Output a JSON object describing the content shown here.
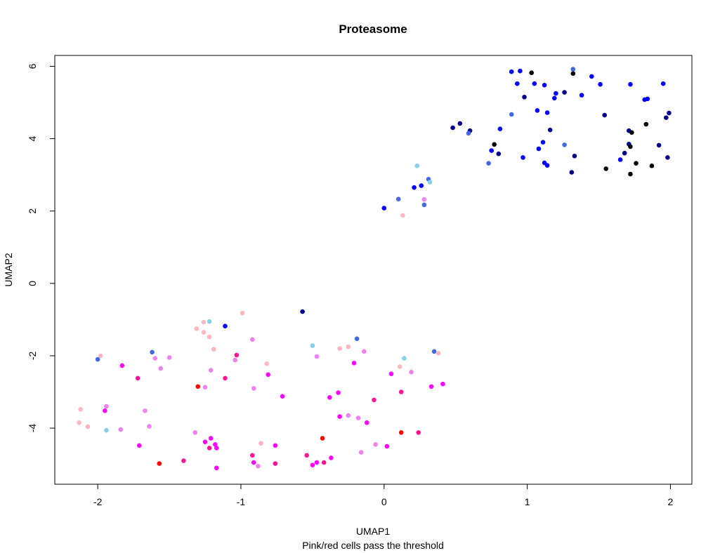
{
  "chart_data": {
    "type": "scatter",
    "title": "Proteasome",
    "xlabel": "UMAP1",
    "ylabel": "UMAP2",
    "subtitle": "Pink/red cells pass the threshold",
    "xlim": [
      -2.3,
      2.15
    ],
    "ylim": [
      -5.55,
      6.3
    ],
    "xticks": [
      -2,
      -1,
      0,
      1,
      2
    ],
    "yticks": [
      -4,
      -2,
      0,
      2,
      4,
      6
    ],
    "xtick_labels": [
      "-2",
      "-1",
      "0",
      "1",
      "2"
    ],
    "ytick_labels": [
      "-4",
      "-2",
      "0",
      "2",
      "4",
      "6"
    ],
    "grid": false,
    "legend": "none",
    "colors": {
      "black": "#000000",
      "navy": "#00008B",
      "blue": "#0000FF",
      "royalblue": "#4169E1",
      "skyblue": "#87CEEB",
      "red": "#FF0000",
      "deeppink": "#FF1493",
      "magenta": "#FF00FF",
      "violet": "#EE82EE",
      "pink": "#FFB6C1"
    },
    "points": [
      {
        "x": 0.89,
        "y": 5.85,
        "c": "blue"
      },
      {
        "x": 0.95,
        "y": 5.87,
        "c": "blue"
      },
      {
        "x": 1.03,
        "y": 5.82,
        "c": "black"
      },
      {
        "x": 1.32,
        "y": 5.92,
        "c": "royalblue"
      },
      {
        "x": 1.32,
        "y": 5.8,
        "c": "black"
      },
      {
        "x": 0.93,
        "y": 5.52,
        "c": "blue"
      },
      {
        "x": 1.05,
        "y": 5.52,
        "c": "blue"
      },
      {
        "x": 1.12,
        "y": 5.48,
        "c": "blue"
      },
      {
        "x": 1.45,
        "y": 5.72,
        "c": "blue"
      },
      {
        "x": 1.51,
        "y": 5.5,
        "c": "blue"
      },
      {
        "x": 1.72,
        "y": 5.5,
        "c": "blue"
      },
      {
        "x": 1.95,
        "y": 5.52,
        "c": "blue"
      },
      {
        "x": 1.2,
        "y": 5.25,
        "c": "blue"
      },
      {
        "x": 1.26,
        "y": 5.28,
        "c": "navy"
      },
      {
        "x": 1.38,
        "y": 5.2,
        "c": "blue"
      },
      {
        "x": 1.19,
        "y": 5.12,
        "c": "blue"
      },
      {
        "x": 0.98,
        "y": 5.15,
        "c": "navy"
      },
      {
        "x": 1.84,
        "y": 5.1,
        "c": "blue"
      },
      {
        "x": 1.82,
        "y": 5.08,
        "c": "blue"
      },
      {
        "x": 1.07,
        "y": 4.78,
        "c": "blue"
      },
      {
        "x": 1.14,
        "y": 4.72,
        "c": "blue"
      },
      {
        "x": 0.89,
        "y": 4.67,
        "c": "royalblue"
      },
      {
        "x": 1.54,
        "y": 4.65,
        "c": "navy"
      },
      {
        "x": 1.99,
        "y": 4.71,
        "c": "navy"
      },
      {
        "x": 1.97,
        "y": 4.58,
        "c": "navy"
      },
      {
        "x": 0.53,
        "y": 4.42,
        "c": "navy"
      },
      {
        "x": 0.48,
        "y": 4.3,
        "c": "navy"
      },
      {
        "x": 1.83,
        "y": 4.4,
        "c": "black"
      },
      {
        "x": 0.81,
        "y": 4.27,
        "c": "blue"
      },
      {
        "x": 0.6,
        "y": 4.22,
        "c": "navy"
      },
      {
        "x": 0.59,
        "y": 4.15,
        "c": "royalblue"
      },
      {
        "x": 1.16,
        "y": 4.24,
        "c": "navy"
      },
      {
        "x": 1.71,
        "y": 4.22,
        "c": "navy"
      },
      {
        "x": 1.73,
        "y": 4.17,
        "c": "black"
      },
      {
        "x": 0.77,
        "y": 3.84,
        "c": "black"
      },
      {
        "x": 0.75,
        "y": 3.67,
        "c": "blue"
      },
      {
        "x": 0.8,
        "y": 3.58,
        "c": "navy"
      },
      {
        "x": 1.11,
        "y": 3.9,
        "c": "blue"
      },
      {
        "x": 1.08,
        "y": 3.72,
        "c": "blue"
      },
      {
        "x": 1.26,
        "y": 3.83,
        "c": "royalblue"
      },
      {
        "x": 1.71,
        "y": 3.85,
        "c": "navy"
      },
      {
        "x": 1.72,
        "y": 3.78,
        "c": "black"
      },
      {
        "x": 1.92,
        "y": 3.82,
        "c": "navy"
      },
      {
        "x": 1.68,
        "y": 3.6,
        "c": "navy"
      },
      {
        "x": 0.97,
        "y": 3.48,
        "c": "blue"
      },
      {
        "x": 1.33,
        "y": 3.52,
        "c": "navy"
      },
      {
        "x": 1.65,
        "y": 3.42,
        "c": "blue"
      },
      {
        "x": 1.98,
        "y": 3.48,
        "c": "navy"
      },
      {
        "x": 0.73,
        "y": 3.32,
        "c": "royalblue"
      },
      {
        "x": 1.12,
        "y": 3.33,
        "c": "blue"
      },
      {
        "x": 1.14,
        "y": 3.26,
        "c": "blue"
      },
      {
        "x": 1.76,
        "y": 3.32,
        "c": "black"
      },
      {
        "x": 1.87,
        "y": 3.25,
        "c": "black"
      },
      {
        "x": 1.55,
        "y": 3.17,
        "c": "black"
      },
      {
        "x": 1.31,
        "y": 3.07,
        "c": "navy"
      },
      {
        "x": 1.72,
        "y": 3.02,
        "c": "black"
      },
      {
        "x": 0.23,
        "y": 3.25,
        "c": "skyblue"
      },
      {
        "x": 0.31,
        "y": 2.88,
        "c": "royalblue"
      },
      {
        "x": 0.32,
        "y": 2.8,
        "c": "skyblue"
      },
      {
        "x": 0.26,
        "y": 2.7,
        "c": "blue"
      },
      {
        "x": 0.21,
        "y": 2.65,
        "c": "blue"
      },
      {
        "x": 0.1,
        "y": 2.33,
        "c": "royalblue"
      },
      {
        "x": 0.28,
        "y": 2.32,
        "c": "violet"
      },
      {
        "x": 0.28,
        "y": 2.17,
        "c": "royalblue"
      },
      {
        "x": 0.0,
        "y": 2.08,
        "c": "blue"
      },
      {
        "x": 0.13,
        "y": 1.88,
        "c": "pink"
      },
      {
        "x": -0.57,
        "y": -0.78,
        "c": "navy"
      },
      {
        "x": -0.99,
        "y": -0.82,
        "c": "pink"
      },
      {
        "x": -1.22,
        "y": -1.05,
        "c": "skyblue"
      },
      {
        "x": -1.26,
        "y": -1.07,
        "c": "pink"
      },
      {
        "x": -1.31,
        "y": -1.25,
        "c": "pink"
      },
      {
        "x": -1.26,
        "y": -1.35,
        "c": "pink"
      },
      {
        "x": -1.11,
        "y": -1.18,
        "c": "blue"
      },
      {
        "x": -1.22,
        "y": -1.48,
        "c": "pink"
      },
      {
        "x": -0.92,
        "y": -1.55,
        "c": "violet"
      },
      {
        "x": -0.5,
        "y": -1.72,
        "c": "skyblue"
      },
      {
        "x": -0.31,
        "y": -1.8,
        "c": "pink"
      },
      {
        "x": -0.25,
        "y": -1.75,
        "c": "pink"
      },
      {
        "x": -0.19,
        "y": -1.53,
        "c": "royalblue"
      },
      {
        "x": -0.14,
        "y": -1.88,
        "c": "violet"
      },
      {
        "x": 0.35,
        "y": -1.88,
        "c": "royalblue"
      },
      {
        "x": 0.38,
        "y": -1.93,
        "c": "pink"
      },
      {
        "x": -1.62,
        "y": -1.9,
        "c": "royalblue"
      },
      {
        "x": -1.19,
        "y": -1.82,
        "c": "pink"
      },
      {
        "x": -1.98,
        "y": -2.0,
        "c": "pink"
      },
      {
        "x": -2.0,
        "y": -2.1,
        "c": "royalblue"
      },
      {
        "x": -1.6,
        "y": -2.07,
        "c": "violet"
      },
      {
        "x": -1.5,
        "y": -2.05,
        "c": "violet"
      },
      {
        "x": -1.03,
        "y": -1.98,
        "c": "deeppink"
      },
      {
        "x": -1.04,
        "y": -2.12,
        "c": "violet"
      },
      {
        "x": -0.47,
        "y": -2.02,
        "c": "violet"
      },
      {
        "x": 0.14,
        "y": -2.07,
        "c": "skyblue"
      },
      {
        "x": -0.82,
        "y": -2.22,
        "c": "pink"
      },
      {
        "x": -1.83,
        "y": -2.27,
        "c": "magenta"
      },
      {
        "x": -1.56,
        "y": -2.35,
        "c": "violet"
      },
      {
        "x": -1.21,
        "y": -2.4,
        "c": "violet"
      },
      {
        "x": -0.21,
        "y": -2.2,
        "c": "magenta"
      },
      {
        "x": 0.11,
        "y": -2.3,
        "c": "pink"
      },
      {
        "x": 0.19,
        "y": -2.45,
        "c": "violet"
      },
      {
        "x": 0.05,
        "y": -2.5,
        "c": "magenta"
      },
      {
        "x": -0.81,
        "y": -2.52,
        "c": "magenta"
      },
      {
        "x": -1.72,
        "y": -2.62,
        "c": "deeppink"
      },
      {
        "x": -1.11,
        "y": -2.62,
        "c": "deeppink"
      },
      {
        "x": -1.3,
        "y": -2.85,
        "c": "red"
      },
      {
        "x": -1.25,
        "y": -2.87,
        "c": "violet"
      },
      {
        "x": -0.91,
        "y": -2.9,
        "c": "violet"
      },
      {
        "x": 0.33,
        "y": -2.85,
        "c": "magenta"
      },
      {
        "x": 0.41,
        "y": -2.78,
        "c": "magenta"
      },
      {
        "x": 0.12,
        "y": -3.0,
        "c": "deeppink"
      },
      {
        "x": -0.32,
        "y": -3.02,
        "c": "magenta"
      },
      {
        "x": -0.71,
        "y": -3.12,
        "c": "magenta"
      },
      {
        "x": -0.38,
        "y": -3.15,
        "c": "magenta"
      },
      {
        "x": -0.07,
        "y": -3.22,
        "c": "deeppink"
      },
      {
        "x": -1.94,
        "y": -3.4,
        "c": "violet"
      },
      {
        "x": -2.12,
        "y": -3.48,
        "c": "pink"
      },
      {
        "x": -1.95,
        "y": -3.52,
        "c": "magenta"
      },
      {
        "x": -1.67,
        "y": -3.52,
        "c": "violet"
      },
      {
        "x": -0.31,
        "y": -3.68,
        "c": "magenta"
      },
      {
        "x": -0.25,
        "y": -3.65,
        "c": "violet"
      },
      {
        "x": -0.18,
        "y": -3.72,
        "c": "violet"
      },
      {
        "x": -0.12,
        "y": -3.85,
        "c": "magenta"
      },
      {
        "x": -2.13,
        "y": -3.85,
        "c": "pink"
      },
      {
        "x": -2.07,
        "y": -3.96,
        "c": "pink"
      },
      {
        "x": -1.64,
        "y": -3.95,
        "c": "violet"
      },
      {
        "x": -1.84,
        "y": -4.04,
        "c": "violet"
      },
      {
        "x": -1.94,
        "y": -4.06,
        "c": "skyblue"
      },
      {
        "x": -1.32,
        "y": -4.12,
        "c": "violet"
      },
      {
        "x": 0.12,
        "y": -4.12,
        "c": "red"
      },
      {
        "x": 0.24,
        "y": -4.12,
        "c": "deeppink"
      },
      {
        "x": -0.43,
        "y": -4.28,
        "c": "red"
      },
      {
        "x": -1.21,
        "y": -4.28,
        "c": "magenta"
      },
      {
        "x": -1.25,
        "y": -4.38,
        "c": "magenta"
      },
      {
        "x": -1.18,
        "y": -4.45,
        "c": "magenta"
      },
      {
        "x": -0.86,
        "y": -4.42,
        "c": "pink"
      },
      {
        "x": -0.76,
        "y": -4.48,
        "c": "magenta"
      },
      {
        "x": -0.06,
        "y": -4.45,
        "c": "violet"
      },
      {
        "x": 0.02,
        "y": -4.5,
        "c": "magenta"
      },
      {
        "x": -1.71,
        "y": -4.48,
        "c": "magenta"
      },
      {
        "x": -1.22,
        "y": -4.55,
        "c": "deeppink"
      },
      {
        "x": -1.17,
        "y": -4.55,
        "c": "magenta"
      },
      {
        "x": -0.16,
        "y": -4.67,
        "c": "violet"
      },
      {
        "x": -0.92,
        "y": -4.75,
        "c": "deeppink"
      },
      {
        "x": -0.54,
        "y": -4.75,
        "c": "deeppink"
      },
      {
        "x": -0.37,
        "y": -4.82,
        "c": "magenta"
      },
      {
        "x": -1.4,
        "y": -4.9,
        "c": "deeppink"
      },
      {
        "x": -0.91,
        "y": -4.95,
        "c": "magenta"
      },
      {
        "x": -0.42,
        "y": -4.95,
        "c": "deeppink"
      },
      {
        "x": -0.47,
        "y": -4.95,
        "c": "magenta"
      },
      {
        "x": -1.57,
        "y": -4.98,
        "c": "red"
      },
      {
        "x": -0.76,
        "y": -4.98,
        "c": "deeppink"
      },
      {
        "x": -0.5,
        "y": -5.02,
        "c": "magenta"
      },
      {
        "x": -0.88,
        "y": -5.05,
        "c": "violet"
      },
      {
        "x": -1.17,
        "y": -5.1,
        "c": "magenta"
      }
    ]
  }
}
